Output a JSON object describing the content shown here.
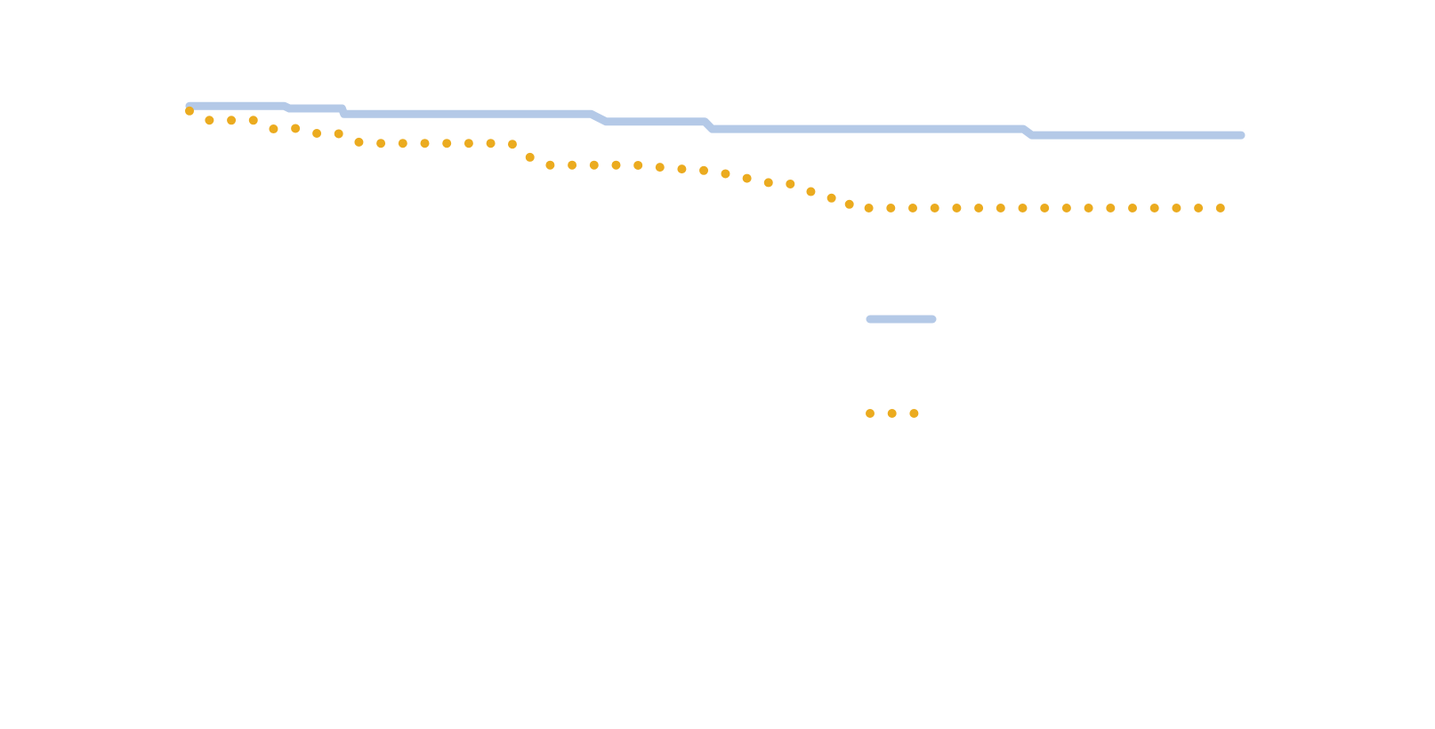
{
  "chart_data": {
    "type": "line",
    "xlim": [
      0,
      100
    ],
    "ylim": [
      0,
      100
    ],
    "series": [
      {
        "color": "#b4c9e7",
        "style": "solid",
        "x": [
          0,
          9,
          9.5,
          14.5,
          14.7,
          38.2,
          39.6,
          49,
          49.7,
          79.3,
          80.1,
          100
        ],
        "values": [
          94.4,
          94.4,
          94,
          94,
          93.1,
          93.1,
          91.9,
          91.9,
          90.7,
          90.7,
          89.7,
          89.7
        ]
      },
      {
        "color": "#ebab1f",
        "style": "dotted",
        "x": [
          0,
          1.9,
          6.1,
          8,
          10.2,
          12,
          14.1,
          16,
          18.1,
          30.6,
          32.2,
          33.9,
          42.4,
          44.4,
          46.5,
          48.6,
          50.7,
          52.7,
          54.7,
          56.9,
          58.6,
          60.5,
          62.5,
          62.9,
          99.3
        ],
        "values": [
          93.6,
          92.1,
          92.1,
          90.7,
          90.8,
          90,
          90,
          88.6,
          88.4,
          88.4,
          86.3,
          84.9,
          84.9,
          84.6,
          84.3,
          84.1,
          83.6,
          82.9,
          82.1,
          82,
          81,
          79.6,
          79.6,
          78,
          78
        ]
      }
    ]
  }
}
